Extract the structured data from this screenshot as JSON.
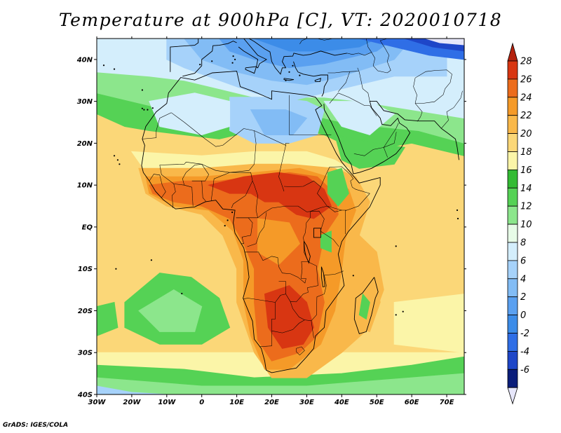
{
  "title": "Temperature at 900hPa [C], VT: 2020010718",
  "footer": "GrADS: IGES/COLA",
  "map": {
    "lon_range": [
      -30,
      75
    ],
    "lat_range": [
      -40,
      45
    ],
    "lon_ticks": [
      "30W",
      "20W",
      "10W",
      "0",
      "10E",
      "20E",
      "30E",
      "40E",
      "50E",
      "60E",
      "70E"
    ],
    "lat_ticks": [
      "40N",
      "30N",
      "20N",
      "10N",
      "EQ",
      "10S",
      "20S",
      "30S",
      "40S"
    ],
    "colors": {
      "below_-6": "#e6e6fa",
      "-6": "#0a1d7a",
      "-4": "#1e46c8",
      "-2": "#2f6ee6",
      "0": "#3c8ce8",
      "2": "#5aa0f0",
      "4": "#82bcf5",
      "6": "#a6d2fa",
      "8": "#d4eefc",
      "10": "#e7fbe7",
      "12": "#8ce68c",
      "14": "#55d255",
      "16": "#33bb33",
      "18": "#fbf5a8",
      "20": "#fbd778",
      "22": "#f9b84a",
      "24": "#f59a28",
      "26": "#ec6c1c",
      "28": "#d83612"
    }
  },
  "colorbar": {
    "labels": [
      "28",
      "26",
      "24",
      "22",
      "20",
      "18",
      "16",
      "14",
      "12",
      "10",
      "8",
      "6",
      "4",
      "2",
      "0",
      "-2",
      "-4",
      "-6"
    ],
    "colors": [
      "#d83612",
      "#ec6c1c",
      "#f59a28",
      "#f9b84a",
      "#fbd778",
      "#fbf5a8",
      "#33bb33",
      "#55d255",
      "#8ce68c",
      "#e7fbe7",
      "#d4eefc",
      "#a6d2fa",
      "#82bcf5",
      "#5aa0f0",
      "#3c8ce8",
      "#2f6ee6",
      "#1e46c8",
      "#0a1d7a"
    ],
    "top_arrow_color": "#b4220e",
    "bottom_arrow_color": "#e6e6fa"
  }
}
